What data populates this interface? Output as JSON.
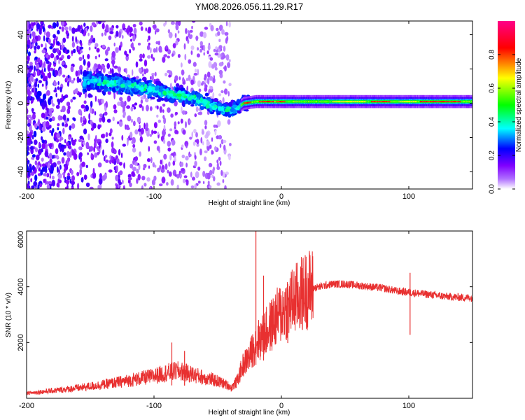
{
  "figure_title": "YM08.2026.056.11.29.R17",
  "colors": {
    "snr_line": "#e83030",
    "frame": "#000000"
  },
  "chart_data": [
    {
      "type": "heatmap",
      "title": "",
      "xlabel": "Height of straight line (km)",
      "ylabel": "Frequency (Hz)",
      "xlim": [
        -200,
        150
      ],
      "ylim": [
        -50,
        48
      ],
      "xticks": [
        -200,
        -100,
        0,
        100
      ],
      "yticks": [
        -40,
        -20,
        0,
        20,
        40
      ],
      "xtick_labels": [
        "-200",
        "-100",
        "0",
        "100"
      ],
      "ytick_labels": [
        "-40",
        "-20",
        "0",
        "20",
        "40"
      ],
      "colorbar": {
        "label": "Normalized spectral amplitude",
        "range": [
          0,
          1
        ],
        "ticks": [
          0.0,
          0.2,
          0.4,
          0.6,
          0.8
        ],
        "tick_labels": [
          "0.0",
          "0.2",
          "0.4",
          "0.6",
          "0.8"
        ],
        "colormap": [
          "#ffffff",
          "#7f00ff",
          "#0000ff",
          "#00ffff",
          "#00ff00",
          "#ffff00",
          "#ff0000",
          "#ff00aa"
        ]
      },
      "ridge": [
        {
          "x": -150,
          "y": 13
        },
        {
          "x": -130,
          "y": 11
        },
        {
          "x": -110,
          "y": 9
        },
        {
          "x": -90,
          "y": 6
        },
        {
          "x": -70,
          "y": 3
        },
        {
          "x": -55,
          "y": -1
        },
        {
          "x": -45,
          "y": -4
        },
        {
          "x": -35,
          "y": -3
        },
        {
          "x": -30,
          "y": 0
        },
        {
          "x": -20,
          "y": 1
        },
        {
          "x": 0,
          "y": 1
        },
        {
          "x": 50,
          "y": 1
        },
        {
          "x": 100,
          "y": 1
        },
        {
          "x": 150,
          "y": 1
        }
      ]
    },
    {
      "type": "line",
      "title": "",
      "xlabel": "Height of straight line (km)",
      "ylabel": "SNR (10 * v/v)",
      "xlim": [
        -200,
        150
      ],
      "ylim": [
        0,
        6000
      ],
      "xticks": [
        -200,
        -100,
        0,
        100
      ],
      "yticks": [
        2000,
        4000,
        6000
      ],
      "xtick_labels": [
        "-200",
        "-100",
        "0",
        "100"
      ],
      "ytick_labels": [
        "2000",
        "4000",
        "6000"
      ],
      "series": [
        {
          "name": "SNR",
          "points": [
            {
              "x": -200,
              "y": 150
            },
            {
              "x": -180,
              "y": 220
            },
            {
              "x": -160,
              "y": 300
            },
            {
              "x": -140,
              "y": 400
            },
            {
              "x": -120,
              "y": 520
            },
            {
              "x": -100,
              "y": 650
            },
            {
              "x": -90,
              "y": 750
            },
            {
              "x": -80,
              "y": 800
            },
            {
              "x": -70,
              "y": 700
            },
            {
              "x": -60,
              "y": 600
            },
            {
              "x": -50,
              "y": 500
            },
            {
              "x": -40,
              "y": 350
            },
            {
              "x": -35,
              "y": 600
            },
            {
              "x": -30,
              "y": 1200
            },
            {
              "x": -25,
              "y": 1500
            },
            {
              "x": -20,
              "y": 2000
            },
            {
              "x": -15,
              "y": 2200
            },
            {
              "x": -10,
              "y": 2500
            },
            {
              "x": -5,
              "y": 2800
            },
            {
              "x": 0,
              "y": 3100
            },
            {
              "x": 10,
              "y": 3500
            },
            {
              "x": 20,
              "y": 3900
            },
            {
              "x": 30,
              "y": 4000
            },
            {
              "x": 40,
              "y": 4100
            },
            {
              "x": 50,
              "y": 4100
            },
            {
              "x": 60,
              "y": 4050
            },
            {
              "x": 70,
              "y": 4000
            },
            {
              "x": 80,
              "y": 3950
            },
            {
              "x": 90,
              "y": 3850
            },
            {
              "x": 100,
              "y": 3800
            },
            {
              "x": 110,
              "y": 3750
            },
            {
              "x": 120,
              "y": 3700
            },
            {
              "x": 130,
              "y": 3650
            },
            {
              "x": 140,
              "y": 3620
            },
            {
              "x": 150,
              "y": 3600
            }
          ],
          "spikes": [
            {
              "x": -86,
              "y": 2000
            },
            {
              "x": -76,
              "y": 1700
            },
            {
              "x": -20,
              "y": 6000
            },
            {
              "x": -14,
              "y": 4400
            },
            {
              "x": 5,
              "y": 4100
            },
            {
              "x": 101,
              "y": 4500
            }
          ]
        }
      ]
    }
  ]
}
